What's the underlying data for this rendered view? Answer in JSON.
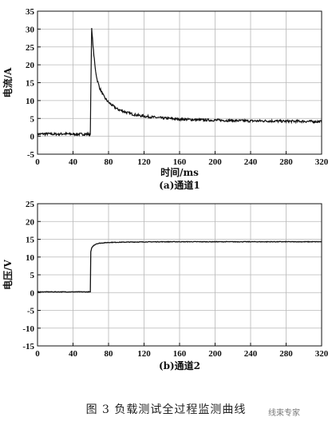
{
  "caption": "图 3   负载测试全过程监测曲线",
  "watermark": "线束专家",
  "chart_data": [
    {
      "type": "line",
      "id": "top",
      "xlabel": "时间/ms",
      "ylabel": "电流/A",
      "sublabel": "(a)通道1",
      "xlim": [
        0,
        320
      ],
      "ylim": [
        -5,
        35
      ],
      "xticks": [
        0,
        40,
        80,
        120,
        160,
        200,
        240,
        280,
        320
      ],
      "yticks": [
        -5,
        0,
        5,
        10,
        15,
        20,
        25,
        30,
        35
      ],
      "grid": true,
      "series": [
        {
          "x": [
            0,
            10,
            20,
            30,
            40,
            50,
            58,
            59.5,
            60,
            61,
            62,
            63,
            65,
            67,
            70,
            75,
            80,
            85,
            90,
            100,
            110,
            120,
            140,
            160,
            180,
            200,
            220,
            240,
            260,
            280,
            300,
            320
          ],
          "y": [
            0.6,
            0.7,
            0.6,
            0.7,
            0.6,
            0.6,
            0.6,
            0.6,
            12,
            30,
            27,
            24,
            19,
            16,
            13.5,
            11,
            9.5,
            8.5,
            7.6,
            6.7,
            6.0,
            5.6,
            5.1,
            4.8,
            4.6,
            4.5,
            4.4,
            4.3,
            4.3,
            4.2,
            4.2,
            4.1
          ]
        }
      ]
    },
    {
      "type": "line",
      "id": "bottom",
      "xlabel": "",
      "ylabel": "电压/V",
      "sublabel": "(b)通道2",
      "xlim": [
        0,
        320
      ],
      "ylim": [
        -15,
        25
      ],
      "xticks": [
        0,
        40,
        80,
        120,
        160,
        200,
        240,
        280,
        320
      ],
      "yticks": [
        -15,
        -10,
        -5,
        0,
        5,
        10,
        15,
        20,
        25
      ],
      "grid": true,
      "series": [
        {
          "x": [
            0,
            20,
            40,
            58,
            59.5,
            60,
            61,
            63,
            66,
            70,
            75,
            80,
            100,
            140,
            200,
            260,
            320
          ],
          "y": [
            0.2,
            0.2,
            0.2,
            0.2,
            0.2,
            11.5,
            12.5,
            13.2,
            13.7,
            13.9,
            14.0,
            14.1,
            14.2,
            14.3,
            14.3,
            14.3,
            14.3
          ]
        }
      ]
    }
  ]
}
